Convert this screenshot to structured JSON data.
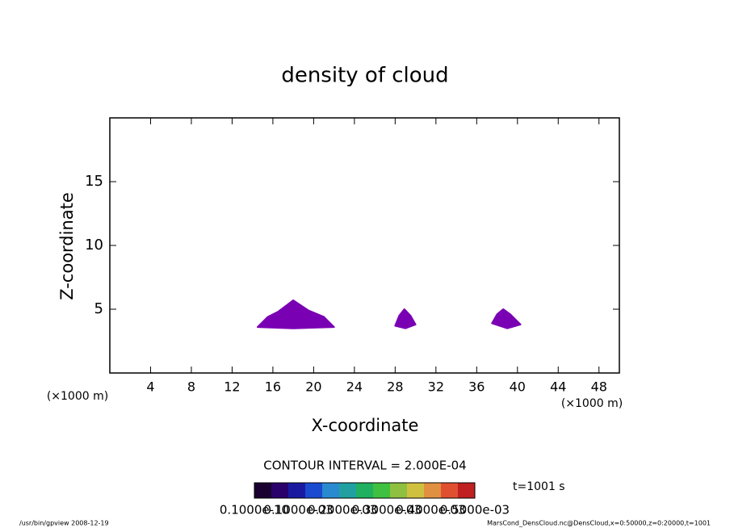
{
  "chart_data": {
    "type": "contour",
    "title": "density of cloud",
    "x_label": "X-coordinate",
    "y_label": "Z-coordinate",
    "x_unit": "(×1000 m)",
    "y_unit": "(×1000 m)",
    "xlim": [
      0,
      50
    ],
    "xticks": [
      4,
      8,
      12,
      16,
      20,
      24,
      28,
      32,
      36,
      40,
      44,
      48
    ],
    "ylim": [
      0,
      20
    ],
    "yticks": [
      5,
      10,
      15
    ],
    "color": "#7a00b4",
    "regions": [
      {
        "x": [
          14.5,
          15.5,
          16.5,
          18,
          19.5,
          21,
          22,
          18
        ],
        "z": [
          3.6,
          4.4,
          4.8,
          5.7,
          4.9,
          4.4,
          3.6,
          3.5
        ]
      },
      {
        "x": [
          28,
          28.4,
          28.9,
          29.5,
          30,
          29
        ],
        "z": [
          3.7,
          4.5,
          5.0,
          4.5,
          3.8,
          3.5
        ]
      },
      {
        "x": [
          37.5,
          38,
          38.6,
          39.3,
          40.3,
          39
        ],
        "z": [
          3.9,
          4.6,
          5.0,
          4.6,
          3.8,
          3.5
        ]
      }
    ],
    "contour_interval": "CONTOUR INTERVAL = 2.000E-04",
    "time_label": "t=1001 s",
    "colorbar": {
      "colors": [
        "#1a0030",
        "#2a006a",
        "#1a1aa0",
        "#1a4ad0",
        "#2a8ad0",
        "#20a0a0",
        "#20b060",
        "#40c040",
        "#90c040",
        "#d0c040",
        "#e09040",
        "#e05030",
        "#c02020"
      ],
      "labels": [
        "0.1000e-10",
        "0.1000e-03",
        "0.2000e-03",
        "0.3000e-03",
        "0.4000e-03",
        "0.5000e-03"
      ]
    },
    "footer_left": "/usr/bin/gpview  2008-12-19",
    "footer_right": "MarsCond_DensCloud.nc@DensCloud,x=0:50000,z=0:20000,t=1001"
  }
}
